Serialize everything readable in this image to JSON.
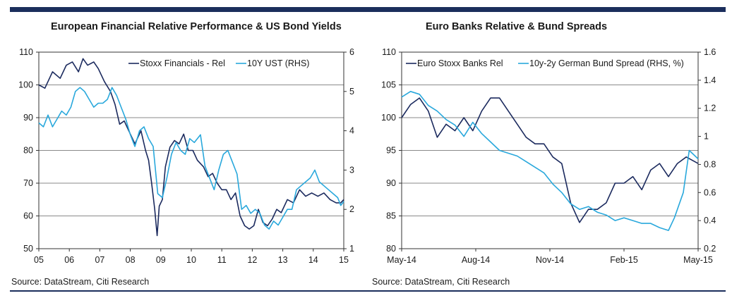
{
  "chart_data": [
    {
      "type": "line",
      "title": "European Financial Relative Performance & US Bond Yields",
      "source": "Source: DataStream, Citi Research",
      "x_ticks": [
        "05",
        "06",
        "07",
        "08",
        "09",
        "10",
        "11",
        "12",
        "13",
        "14",
        "15"
      ],
      "xlim": [
        2005,
        2015
      ],
      "ylim_left": [
        50,
        110
      ],
      "y_ticks_left": [
        "110",
        "100",
        "90",
        "80",
        "70",
        "60",
        "50"
      ],
      "ylim_right": [
        1,
        6
      ],
      "y_ticks_right": [
        "6",
        "5",
        "4",
        "3",
        "2",
        "1"
      ],
      "legend_position": "top-right",
      "series": [
        {
          "name": "Stoxx Financials - Rel",
          "axis": "left",
          "color": "#1b2a5e",
          "x": [
            2005.0,
            2005.2,
            2005.45,
            2005.7,
            2005.9,
            2006.1,
            2006.3,
            2006.45,
            2006.6,
            2006.8,
            2006.95,
            2007.15,
            2007.35,
            2007.5,
            2007.65,
            2007.8,
            2007.95,
            2008.15,
            2008.35,
            2008.5,
            2008.6,
            2008.7,
            2008.8,
            2008.88,
            2008.95,
            2009.05,
            2009.15,
            2009.3,
            2009.45,
            2009.6,
            2009.75,
            2009.9,
            2010.05,
            2010.2,
            2010.4,
            2010.55,
            2010.7,
            2010.85,
            2011.0,
            2011.15,
            2011.3,
            2011.45,
            2011.6,
            2011.75,
            2011.9,
            2012.05,
            2012.2,
            2012.35,
            2012.5,
            2012.65,
            2012.8,
            2012.95,
            2013.15,
            2013.35,
            2013.55,
            2013.75,
            2013.95,
            2014.15,
            2014.35,
            2014.55,
            2014.75,
            2014.9,
            2015.0
          ],
          "y": [
            100,
            99,
            104,
            102,
            106,
            107,
            104,
            108,
            106,
            107,
            105,
            101,
            98,
            94,
            88,
            89,
            86,
            82,
            86,
            80,
            77,
            70,
            62,
            54,
            63,
            65,
            75,
            81,
            83,
            82,
            85,
            80,
            80,
            77,
            75,
            72,
            73,
            70,
            68,
            68,
            65,
            67,
            60,
            57,
            56,
            57,
            62,
            58,
            57,
            59,
            62,
            61,
            65,
            64,
            68,
            66,
            67,
            66,
            67,
            65,
            64,
            64,
            65
          ]
        },
        {
          "name": "10Y UST (RHS)",
          "axis": "right",
          "color": "#29a8dc",
          "x": [
            2005.0,
            2005.15,
            2005.3,
            2005.45,
            2005.6,
            2005.75,
            2005.9,
            2006.05,
            2006.2,
            2006.35,
            2006.5,
            2006.65,
            2006.8,
            2006.95,
            2007.1,
            2007.25,
            2007.4,
            2007.55,
            2007.7,
            2007.85,
            2008.0,
            2008.15,
            2008.3,
            2008.45,
            2008.6,
            2008.75,
            2008.9,
            2009.05,
            2009.2,
            2009.35,
            2009.5,
            2009.65,
            2009.8,
            2009.95,
            2010.1,
            2010.3,
            2010.45,
            2010.6,
            2010.75,
            2010.9,
            2011.05,
            2011.2,
            2011.35,
            2011.5,
            2011.65,
            2011.8,
            2011.95,
            2012.1,
            2012.25,
            2012.4,
            2012.55,
            2012.7,
            2012.85,
            2013.0,
            2013.15,
            2013.3,
            2013.45,
            2013.6,
            2013.75,
            2013.9,
            2014.05,
            2014.2,
            2014.35,
            2014.5,
            2014.65,
            2014.8,
            2014.9,
            2015.0
          ],
          "y": [
            4.2,
            4.1,
            4.4,
            4.1,
            4.3,
            4.5,
            4.4,
            4.6,
            5.0,
            5.1,
            5.0,
            4.8,
            4.6,
            4.7,
            4.7,
            4.8,
            5.1,
            4.9,
            4.6,
            4.3,
            3.9,
            3.6,
            4.0,
            4.1,
            3.8,
            3.6,
            2.4,
            2.3,
            2.8,
            3.4,
            3.7,
            3.5,
            3.4,
            3.8,
            3.7,
            3.9,
            3.1,
            2.8,
            2.5,
            3.0,
            3.4,
            3.5,
            3.2,
            2.9,
            2.0,
            2.1,
            1.9,
            2.0,
            1.9,
            1.6,
            1.5,
            1.7,
            1.6,
            1.8,
            2.0,
            2.0,
            2.5,
            2.6,
            2.7,
            2.8,
            3.0,
            2.7,
            2.6,
            2.5,
            2.4,
            2.3,
            2.1,
            2.2
          ]
        }
      ]
    },
    {
      "type": "line",
      "title": "Euro Banks Relative & Bund Spreads",
      "source": "Source: DataStream, Citi Research",
      "x_ticks": [
        "May-14",
        "Aug-14",
        "Nov-14",
        "Feb-15",
        "May-15"
      ],
      "ylim_left": [
        80,
        110
      ],
      "y_ticks_left": [
        "110",
        "105",
        "100",
        "95",
        "90",
        "85",
        "80"
      ],
      "ylim_right": [
        0.2,
        1.6
      ],
      "y_ticks_right": [
        "1.6",
        "1.4",
        "1.2",
        "1",
        "0.8",
        "0.6",
        "0.4",
        "0.2"
      ],
      "legend_position": "top",
      "series": [
        {
          "name": "Euro Stoxx Banks Rel",
          "axis": "left",
          "color": "#1b2a5e",
          "x": [
            0.0,
            0.03,
            0.06,
            0.09,
            0.12,
            0.15,
            0.18,
            0.21,
            0.24,
            0.27,
            0.3,
            0.33,
            0.36,
            0.39,
            0.42,
            0.45,
            0.48,
            0.51,
            0.54,
            0.57,
            0.6,
            0.63,
            0.66,
            0.69,
            0.72,
            0.75,
            0.78,
            0.81,
            0.84,
            0.87,
            0.9,
            0.93,
            0.96,
            1.0
          ],
          "y": [
            100,
            102,
            103,
            101,
            97,
            99,
            98,
            100,
            98,
            101,
            103,
            103,
            101,
            99,
            97,
            96,
            96,
            94,
            93,
            87,
            84,
            86,
            86,
            87,
            90,
            90,
            91,
            89,
            92,
            93,
            91,
            93,
            94,
            93
          ]
        },
        {
          "name": "10y-2y German Bund Spread (RHS, %)",
          "axis": "right",
          "color": "#29a8dc",
          "x": [
            0.0,
            0.03,
            0.06,
            0.09,
            0.12,
            0.15,
            0.18,
            0.21,
            0.24,
            0.27,
            0.3,
            0.33,
            0.36,
            0.39,
            0.42,
            0.45,
            0.48,
            0.51,
            0.54,
            0.57,
            0.6,
            0.63,
            0.66,
            0.69,
            0.72,
            0.75,
            0.78,
            0.81,
            0.84,
            0.87,
            0.9,
            0.92,
            0.95,
            0.97,
            1.0
          ],
          "y": [
            1.28,
            1.32,
            1.3,
            1.22,
            1.18,
            1.12,
            1.08,
            1.0,
            1.1,
            1.02,
            0.96,
            0.9,
            0.88,
            0.86,
            0.82,
            0.78,
            0.74,
            0.66,
            0.6,
            0.52,
            0.48,
            0.5,
            0.46,
            0.44,
            0.4,
            0.42,
            0.4,
            0.38,
            0.38,
            0.35,
            0.33,
            0.42,
            0.6,
            0.9,
            0.84
          ]
        }
      ]
    }
  ]
}
